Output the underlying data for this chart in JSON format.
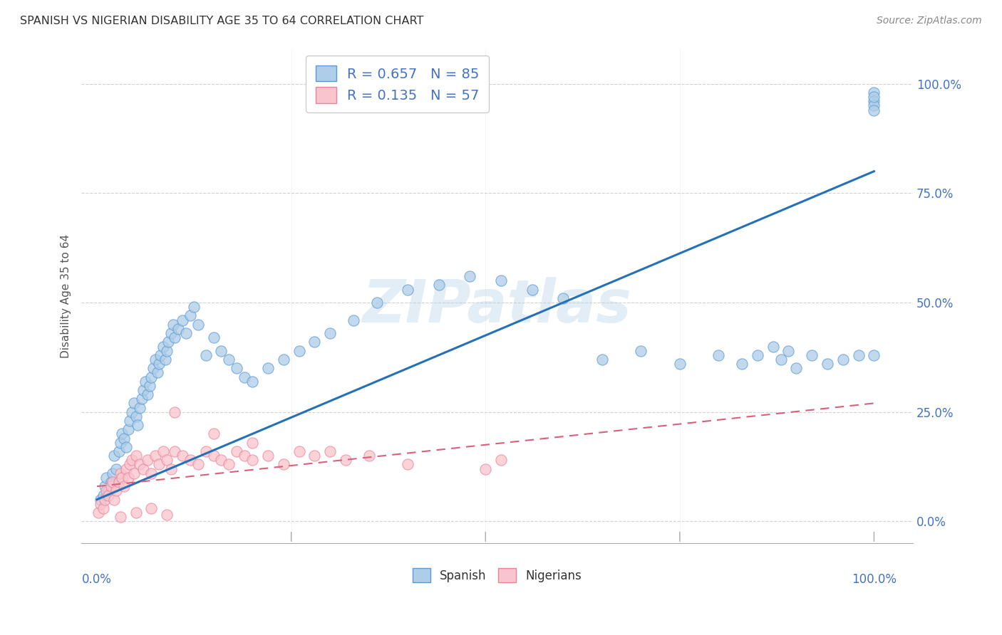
{
  "title": "SPANISH VS NIGERIAN DISABILITY AGE 35 TO 64 CORRELATION CHART",
  "source": "Source: ZipAtlas.com",
  "ylabel": "Disability Age 35 to 64",
  "xlim": [
    -0.02,
    1.05
  ],
  "ylim": [
    -0.05,
    1.08
  ],
  "ytick_values": [
    0.0,
    0.25,
    0.5,
    0.75,
    1.0
  ],
  "ytick_labels": [
    "0.0%",
    "25.0%",
    "50.0%",
    "75.0%",
    "100.0%"
  ],
  "xtick_values": [
    0.0,
    0.25,
    0.5,
    0.75,
    1.0
  ],
  "blue_R": 0.657,
  "blue_N": 85,
  "pink_R": 0.135,
  "pink_N": 57,
  "blue_fill_color": "#aecde8",
  "pink_fill_color": "#f9c4cc",
  "blue_edge_color": "#5b9bd5",
  "pink_edge_color": "#e8849a",
  "blue_line_color": "#2471b8",
  "pink_line_color": "#d9607a",
  "watermark": "ZIPatlas",
  "legend_label_blue": "Spanish",
  "legend_label_pink": "Nigerians",
  "blue_x": [
    0.005,
    0.008,
    0.01,
    0.012,
    0.015,
    0.018,
    0.02,
    0.022,
    0.025,
    0.028,
    0.03,
    0.032,
    0.035,
    0.038,
    0.04,
    0.042,
    0.045,
    0.048,
    0.05,
    0.052,
    0.055,
    0.058,
    0.06,
    0.062,
    0.065,
    0.068,
    0.07,
    0.072,
    0.075,
    0.078,
    0.08,
    0.082,
    0.085,
    0.088,
    0.09,
    0.092,
    0.095,
    0.098,
    0.1,
    0.105,
    0.11,
    0.115,
    0.12,
    0.125,
    0.13,
    0.14,
    0.15,
    0.16,
    0.17,
    0.18,
    0.19,
    0.2,
    0.22,
    0.24,
    0.26,
    0.28,
    0.3,
    0.33,
    0.36,
    0.4,
    0.44,
    0.48,
    0.52,
    0.56,
    0.6,
    0.65,
    0.7,
    0.75,
    0.8,
    0.83,
    0.85,
    0.87,
    0.88,
    0.89,
    0.9,
    0.92,
    0.94,
    0.96,
    0.98,
    1.0,
    1.0,
    1.0,
    1.0,
    1.0,
    1.0
  ],
  "blue_y": [
    0.05,
    0.06,
    0.08,
    0.1,
    0.07,
    0.09,
    0.11,
    0.15,
    0.12,
    0.16,
    0.18,
    0.2,
    0.19,
    0.17,
    0.21,
    0.23,
    0.25,
    0.27,
    0.24,
    0.22,
    0.26,
    0.28,
    0.3,
    0.32,
    0.29,
    0.31,
    0.33,
    0.35,
    0.37,
    0.34,
    0.36,
    0.38,
    0.4,
    0.37,
    0.39,
    0.41,
    0.43,
    0.45,
    0.42,
    0.44,
    0.46,
    0.43,
    0.47,
    0.49,
    0.45,
    0.38,
    0.42,
    0.39,
    0.37,
    0.35,
    0.33,
    0.32,
    0.35,
    0.37,
    0.39,
    0.41,
    0.43,
    0.46,
    0.5,
    0.53,
    0.54,
    0.56,
    0.55,
    0.53,
    0.51,
    0.37,
    0.39,
    0.36,
    0.38,
    0.36,
    0.38,
    0.4,
    0.37,
    0.39,
    0.35,
    0.38,
    0.36,
    0.37,
    0.38,
    0.38,
    0.98,
    0.96,
    0.95,
    0.97,
    0.94
  ],
  "pink_x": [
    0.002,
    0.005,
    0.008,
    0.01,
    0.012,
    0.015,
    0.018,
    0.02,
    0.022,
    0.025,
    0.028,
    0.03,
    0.032,
    0.035,
    0.038,
    0.04,
    0.042,
    0.045,
    0.048,
    0.05,
    0.055,
    0.06,
    0.065,
    0.07,
    0.075,
    0.08,
    0.085,
    0.09,
    0.095,
    0.1,
    0.11,
    0.12,
    0.13,
    0.14,
    0.15,
    0.16,
    0.17,
    0.18,
    0.19,
    0.2,
    0.22,
    0.24,
    0.26,
    0.28,
    0.3,
    0.32,
    0.35,
    0.4,
    0.5,
    0.52,
    0.1,
    0.15,
    0.2,
    0.03,
    0.05,
    0.07,
    0.09
  ],
  "pink_y": [
    0.02,
    0.04,
    0.03,
    0.05,
    0.07,
    0.06,
    0.08,
    0.09,
    0.05,
    0.07,
    0.09,
    0.11,
    0.1,
    0.08,
    0.12,
    0.1,
    0.13,
    0.14,
    0.11,
    0.15,
    0.13,
    0.12,
    0.14,
    0.11,
    0.15,
    0.13,
    0.16,
    0.14,
    0.12,
    0.16,
    0.15,
    0.14,
    0.13,
    0.16,
    0.15,
    0.14,
    0.13,
    0.16,
    0.15,
    0.14,
    0.15,
    0.13,
    0.16,
    0.15,
    0.16,
    0.14,
    0.15,
    0.13,
    0.12,
    0.14,
    0.25,
    0.2,
    0.18,
    0.01,
    0.02,
    0.03,
    0.015
  ],
  "blue_regline_x": [
    0.0,
    1.0
  ],
  "blue_regline_y": [
    0.05,
    0.8
  ],
  "pink_regline_x": [
    0.0,
    1.0
  ],
  "pink_regline_y": [
    0.08,
    0.27
  ]
}
